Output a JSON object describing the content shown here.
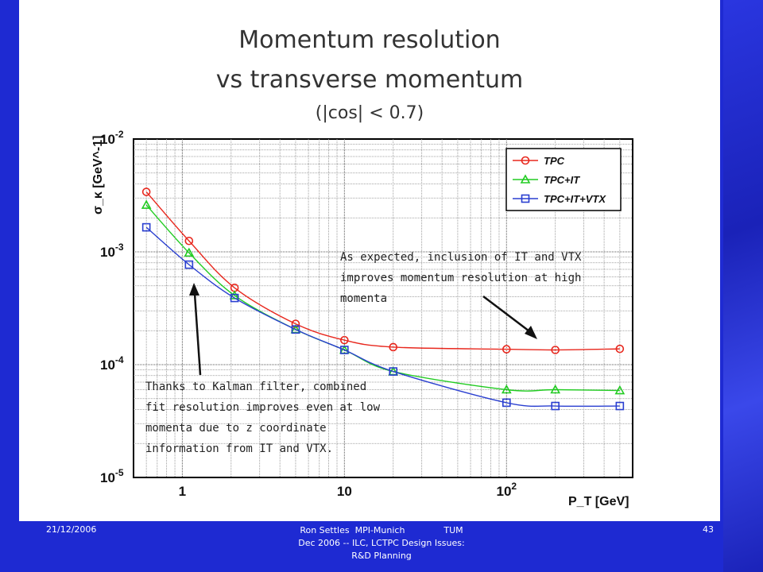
{
  "slide": {
    "title_line1": "Momentum resolution",
    "title_line2": "vs transverse momentum",
    "title_line3": "(|cos| < 0.7)"
  },
  "footer": {
    "date": "21/12/2006",
    "center_line1": "Ron Settles  MPI-Munich              TUM",
    "center_line2": "Dec 2006  -- ILC, LCTPC Design Issues:",
    "center_line3": "R&D Planning",
    "page": "43"
  },
  "colors": {
    "background": "#1e2ad2",
    "tpc": "#e8281e",
    "tpc_it": "#22cc22",
    "tpc_it_vtx": "#2a3fd0"
  },
  "chart_data": {
    "type": "line",
    "xscale": "log",
    "yscale": "log",
    "xlim": [
      0.5,
      600
    ],
    "ylim": [
      1e-05,
      0.01
    ],
    "xlabel": "P_T [GeV]",
    "ylabel": "σ_κ [GeV^-1]",
    "grid": true,
    "legend_position": "top-right",
    "x_tick_labels": [
      "1",
      "10",
      "10^2"
    ],
    "y_tick_labels": [
      "10^-2",
      "10^-3",
      "10^-4",
      "10^-5"
    ],
    "x": [
      0.6,
      1.1,
      2.1,
      5,
      10,
      20,
      100,
      200,
      500
    ],
    "series": [
      {
        "name": "TPC",
        "marker": "circle",
        "color": "#e8281e",
        "values": [
          0.0034,
          0.00125,
          0.00048,
          0.00023,
          0.000165,
          0.000143,
          0.000137,
          0.000135,
          0.000138
        ]
      },
      {
        "name": "TPC+IT",
        "marker": "triangle",
        "color": "#22cc22",
        "values": [
          0.0026,
          0.00098,
          0.00041,
          0.000205,
          0.000135,
          8.7e-05,
          6e-05,
          6e-05,
          5.9e-05
        ]
      },
      {
        "name": "TPC+IT+VTX",
        "marker": "square",
        "color": "#2a3fd0",
        "values": [
          0.00165,
          0.00077,
          0.00039,
          0.000205,
          0.000135,
          8.7e-05,
          4.6e-05,
          4.3e-05,
          4.3e-05
        ]
      }
    ],
    "annotations": [
      {
        "lines": [
          "As expected, inclusion of IT and VTX",
          "improves momentum resolution at high",
          "momenta"
        ]
      },
      {
        "lines": [
          "Thanks to Kalman filter, combined",
          "fit resolution improves even at low",
          "momenta due to z coordinate",
          "information from IT and VTX."
        ]
      }
    ]
  }
}
